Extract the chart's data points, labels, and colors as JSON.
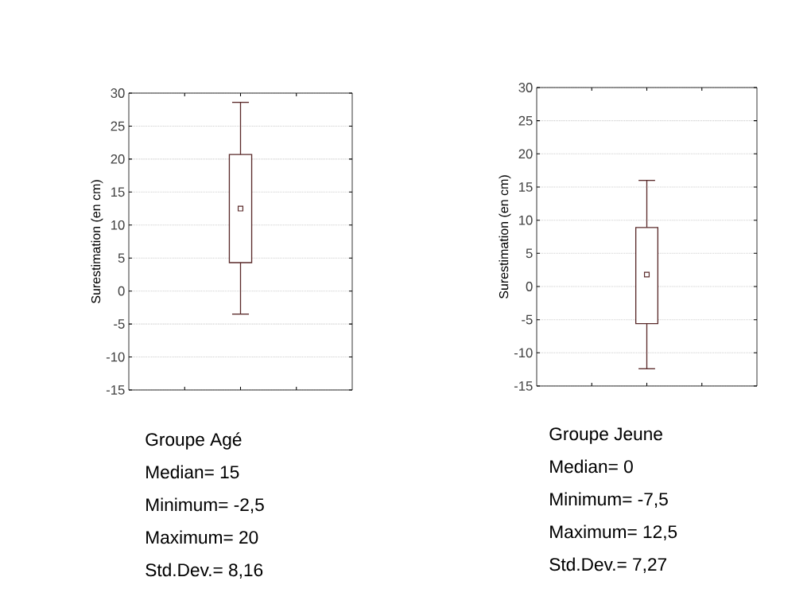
{
  "chart_data": [
    {
      "type": "box",
      "ylabel": "Surestimation (en cm)",
      "categories": [
        null
      ],
      "color": "#5a2a2a",
      "boxes": [
        {
          "low": -3.5,
          "q1": 4.3,
          "median": 12.5,
          "q3": 20.7,
          "high": 28.6
        }
      ],
      "ylim": [
        -15,
        30
      ],
      "yticks": [
        -15,
        -10,
        -5,
        0,
        5,
        10,
        15,
        20,
        25,
        30
      ],
      "grid": "y",
      "tick_labels": "y",
      "marker": "square",
      "annotations": [
        "Groupe Agé",
        "Median= 15",
        "Minimum= -2,5",
        "Maximum= 20",
        "Std.Dev.=  8,16"
      ]
    },
    {
      "type": "box",
      "ylabel": "Surestimation (en cm)",
      "categories": [
        null
      ],
      "color": "#5a2a2a",
      "boxes": [
        {
          "low": -12.4,
          "q1": -5.6,
          "median": 1.8,
          "q3": 8.9,
          "high": 16
        }
      ],
      "ylim": [
        -15,
        30
      ],
      "yticks": [
        -15,
        -10,
        -5,
        0,
        5,
        10,
        15,
        20,
        25,
        30
      ],
      "grid": "y",
      "tick_labels": "y",
      "marker": "square",
      "annotations": [
        "Groupe Jeune",
        "Median=  0",
        "Minimum= -7,5",
        "Maximum= 12,5",
        "Std.Dev.=  7,27"
      ]
    }
  ]
}
